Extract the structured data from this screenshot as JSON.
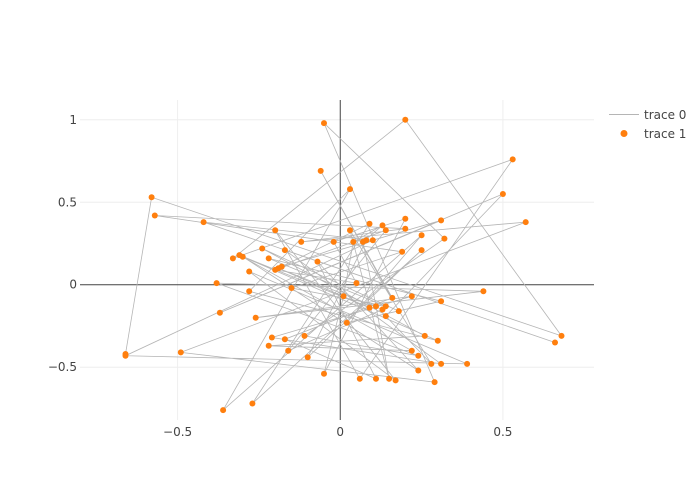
{
  "chart_data": {
    "type": "scatter",
    "xlim": [
      -0.8,
      0.78
    ],
    "ylim": [
      -0.82,
      1.12
    ],
    "xticks": [
      -0.5,
      0,
      0.5
    ],
    "yticks": [
      -0.5,
      0,
      0.5,
      1
    ],
    "xtick_labels": [
      "−0.5",
      "0",
      "0.5"
    ],
    "ytick_labels": [
      "−0.5",
      "0",
      "0.5",
      "1"
    ],
    "grid": true,
    "zeroline": true,
    "legend_position": "top-right",
    "series": [
      {
        "name": "trace 0",
        "mode": "lines",
        "color": "#b5b5b5",
        "x": [
          -0.66,
          -0.58,
          0.68,
          0.2,
          -0.33,
          0.53,
          0.06,
          -0.2,
          0.17,
          -0.28,
          0.39,
          -0.66,
          0.1,
          -0.42,
          0.66,
          -0.17,
          0.31,
          -0.21,
          0.22,
          -0.26,
          0.44,
          -0.38,
          0.24,
          -0.11,
          0.32,
          -0.05,
          0.29,
          -0.49,
          0.57,
          -0.12,
          0.2,
          -0.57,
          0.19,
          -0.15,
          0.14,
          -0.22,
          0.31,
          0.02,
          0.25,
          -0.36,
          0.03,
          -0.28,
          0.3,
          -0.3,
          0.24,
          -0.07,
          0.11,
          -0.17,
          0.16,
          -0.06,
          0.18,
          -0.24,
          0.26,
          -0.22,
          0.22,
          -0.31,
          0.09,
          -0.19,
          0.13,
          -0.16,
          0.14,
          -0.2,
          0.05,
          -0.02,
          0.2,
          -0.05,
          0.01,
          0.04,
          0.13,
          0.07,
          0.11,
          0.15,
          0.03,
          0.28,
          0.14,
          0.5,
          -0.37,
          0.31,
          -0.18,
          0.09,
          -0.27,
          0.25,
          -0.1,
          0.08
        ],
        "y": [
          -0.42,
          0.53,
          -0.31,
          1.0,
          0.16,
          0.76,
          -0.57,
          0.33,
          -0.58,
          0.08,
          -0.48,
          -0.43,
          0.27,
          0.38,
          -0.35,
          0.21,
          -0.48,
          -0.32,
          -0.07,
          -0.2,
          -0.04,
          0.01,
          -0.43,
          -0.31,
          0.28,
          0.98,
          -0.59,
          -0.41,
          0.38,
          0.26,
          0.34,
          0.42,
          0.2,
          -0.02,
          -0.13,
          0.16,
          -0.1,
          -0.23,
          0.3,
          -0.76,
          0.58,
          -0.04,
          -0.34,
          0.17,
          -0.52,
          0.14,
          -0.57,
          -0.33,
          -0.08,
          0.69,
          -0.16,
          0.22,
          -0.31,
          -0.37,
          -0.4,
          0.18,
          -0.14,
          0.1,
          -0.15,
          -0.4,
          0.33,
          0.09,
          0.01,
          0.26,
          0.4,
          -0.54,
          -0.07,
          0.26,
          0.36,
          0.26,
          -0.13,
          -0.57,
          0.33,
          -0.48,
          -0.19,
          0.55,
          -0.17,
          0.39,
          0.11,
          0.37,
          -0.72,
          0.21,
          -0.44,
          0.27
        ]
      },
      {
        "name": "trace 1",
        "mode": "markers",
        "color": "#ff7f0e",
        "x": [
          -0.66,
          -0.58,
          0.68,
          0.2,
          -0.33,
          0.53,
          0.06,
          -0.2,
          0.17,
          -0.28,
          0.39,
          -0.66,
          0.1,
          -0.42,
          0.66,
          -0.17,
          0.31,
          -0.21,
          0.22,
          -0.26,
          0.44,
          -0.38,
          0.24,
          -0.11,
          0.32,
          -0.05,
          0.29,
          -0.49,
          0.57,
          -0.12,
          0.2,
          -0.57,
          0.19,
          -0.15,
          0.14,
          -0.22,
          0.31,
          0.02,
          0.25,
          -0.36,
          0.03,
          -0.28,
          0.3,
          -0.3,
          0.24,
          -0.07,
          0.11,
          -0.17,
          0.16,
          -0.06,
          0.18,
          -0.24,
          0.26,
          -0.22,
          0.22,
          -0.31,
          0.09,
          -0.19,
          0.13,
          -0.16,
          0.14,
          -0.2,
          0.05,
          -0.02,
          0.2,
          -0.05,
          0.01,
          0.04,
          0.13,
          0.07,
          0.11,
          0.15,
          0.03,
          0.28,
          0.14,
          0.5,
          -0.37,
          0.31,
          -0.18,
          0.09,
          -0.27,
          0.25,
          -0.1,
          0.08
        ],
        "y": [
          -0.42,
          0.53,
          -0.31,
          1.0,
          0.16,
          0.76,
          -0.57,
          0.33,
          -0.58,
          0.08,
          -0.48,
          -0.43,
          0.27,
          0.38,
          -0.35,
          0.21,
          -0.48,
          -0.32,
          -0.07,
          -0.2,
          -0.04,
          0.01,
          -0.43,
          -0.31,
          0.28,
          0.98,
          -0.59,
          -0.41,
          0.38,
          0.26,
          0.34,
          0.42,
          0.2,
          -0.02,
          -0.13,
          0.16,
          -0.1,
          -0.23,
          0.3,
          -0.76,
          0.58,
          -0.04,
          -0.34,
          0.17,
          -0.52,
          0.14,
          -0.57,
          -0.33,
          -0.08,
          0.69,
          -0.16,
          0.22,
          -0.31,
          -0.37,
          -0.4,
          0.18,
          -0.14,
          0.1,
          -0.15,
          -0.4,
          0.33,
          0.09,
          0.01,
          0.26,
          0.4,
          -0.54,
          -0.07,
          0.26,
          0.36,
          0.26,
          -0.13,
          -0.57,
          0.33,
          -0.48,
          -0.19,
          0.55,
          -0.17,
          0.39,
          0.11,
          0.37,
          -0.72,
          0.21,
          -0.44,
          0.27
        ]
      }
    ]
  }
}
